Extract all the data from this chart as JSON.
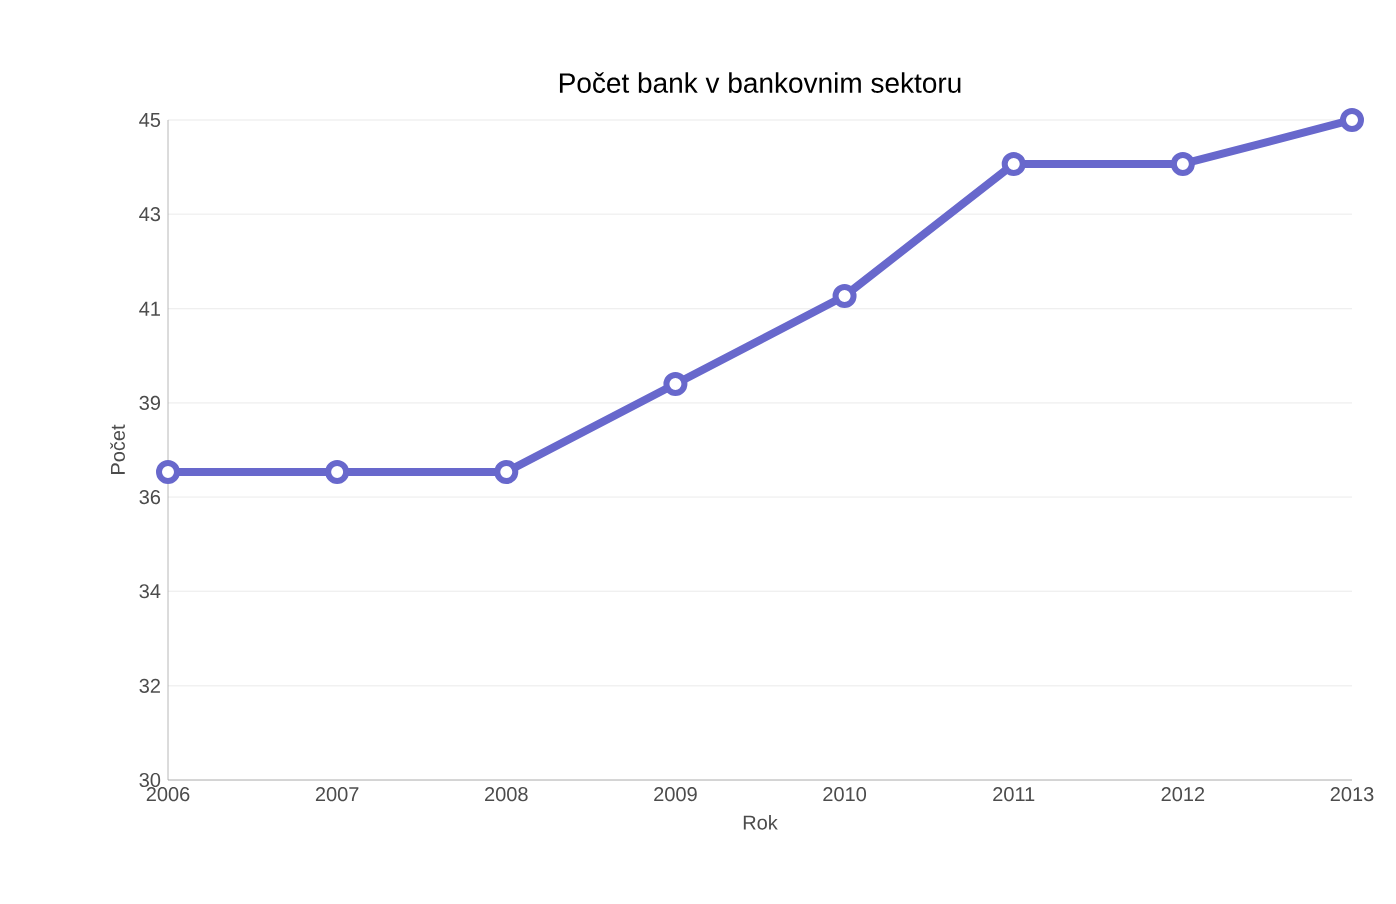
{
  "chart_data": {
    "type": "line",
    "title": "Počet bank v bankovnim sektoru",
    "xlabel": "Rok",
    "ylabel": "Počet",
    "x": [
      2006,
      2007,
      2008,
      2009,
      2010,
      2011,
      2012,
      2013
    ],
    "values": [
      37,
      37,
      37,
      39,
      41,
      44,
      44,
      45
    ],
    "color": "#6868cc",
    "marker": "circle",
    "line_style": "solid",
    "grid": "y",
    "xlim": [
      2006,
      2013
    ],
    "xticks": [
      2006,
      2007,
      2008,
      2009,
      2010,
      2011,
      2012,
      2013
    ],
    "ylim": [
      30,
      45
    ],
    "yticks": [
      30,
      {
        "value": 32.14,
        "label": "32"
      },
      {
        "value": 34.29,
        "label": "34"
      },
      {
        "value": 36.43,
        "label": "36"
      },
      {
        "value": 38.57,
        "label": "39"
      },
      {
        "value": 40.71,
        "label": "41"
      },
      {
        "value": 42.86,
        "label": "43"
      },
      45
    ]
  }
}
